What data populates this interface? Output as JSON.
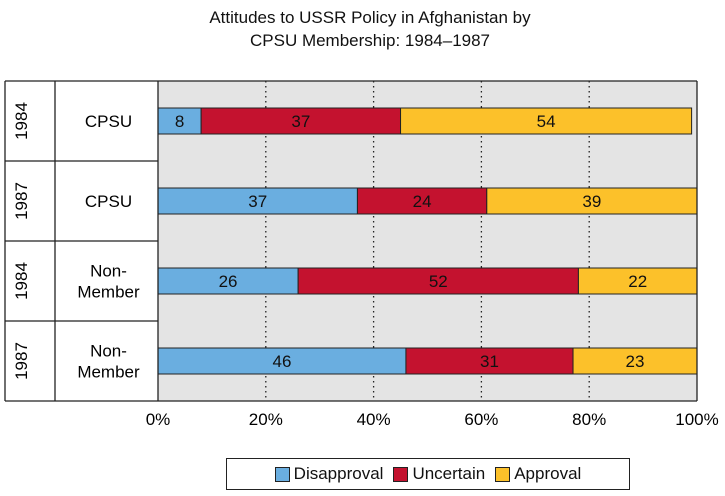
{
  "chart_data": {
    "type": "bar",
    "orientation": "horizontal",
    "stacked": true,
    "title": "Attitudes to USSR Policy in Afghanistan by CPSU Membership: 1984–1987",
    "title_lines": [
      "Attitudes to USSR Policy in Afghanistan by",
      "CPSU Membership: 1984–1987"
    ],
    "rows": [
      {
        "year": "1984",
        "group": "CPSU",
        "group_lines": [
          "CPSU"
        ],
        "values": [
          8,
          37,
          54
        ]
      },
      {
        "year": "1987",
        "group": "CPSU",
        "group_lines": [
          "CPSU"
        ],
        "values": [
          37,
          24,
          39
        ]
      },
      {
        "year": "1984",
        "group": "Non-Member",
        "group_lines": [
          "Non-",
          "Member"
        ],
        "values": [
          26,
          52,
          22
        ]
      },
      {
        "year": "1987",
        "group": "Non-Member",
        "group_lines": [
          "Non-",
          "Member"
        ],
        "values": [
          46,
          31,
          23
        ]
      }
    ],
    "series": [
      {
        "name": "Disapproval",
        "color": "#6aaee0"
      },
      {
        "name": "Uncertain",
        "color": "#c4122f"
      },
      {
        "name": "Approval",
        "color": "#fcc12a"
      }
    ],
    "xlim": [
      0,
      100
    ],
    "x_ticks": [
      0,
      20,
      40,
      60,
      80,
      100
    ],
    "x_tick_labels": [
      "0%",
      "20%",
      "40%",
      "60%",
      "80%",
      "100%"
    ],
    "grid": "vertical dotted",
    "legend_position": "bottom"
  }
}
